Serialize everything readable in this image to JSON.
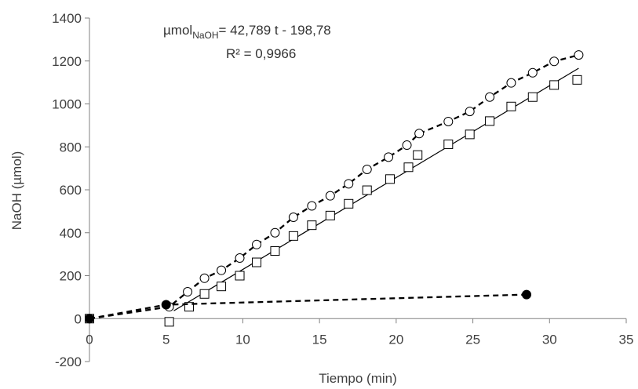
{
  "chart_data": {
    "type": "scatter",
    "xlabel": "Tiempo (min)",
    "ylabel": "NaOH (µmol)",
    "xlim": [
      0,
      35
    ],
    "ylim": [
      -200,
      1400
    ],
    "x_ticks": [
      0,
      5,
      10,
      15,
      20,
      25,
      30,
      35
    ],
    "y_ticks": [
      -200,
      0,
      200,
      400,
      600,
      800,
      1000,
      1200,
      1400
    ],
    "grid": false,
    "legend": "none",
    "annotation": {
      "equation_prefix": "µmol",
      "equation_subscript": "NaOH",
      "equation_rest": "= 42,789 t - 198,78",
      "r_squared": "R² = 0,9966"
    },
    "trendline": {
      "slope": 42.789,
      "intercept": -198.78,
      "x_range": [
        5.5,
        31.9
      ],
      "style": "solid"
    },
    "series": [
      {
        "marker": "square",
        "line": "none",
        "points": [
          [
            0,
            0
          ],
          [
            5.2,
            -15
          ],
          [
            6.5,
            55
          ],
          [
            7.5,
            115
          ],
          [
            8.6,
            150
          ],
          [
            9.8,
            200
          ],
          [
            10.9,
            262
          ],
          [
            12.1,
            315
          ],
          [
            13.3,
            385
          ],
          [
            14.5,
            435
          ],
          [
            15.7,
            480
          ],
          [
            16.9,
            535
          ],
          [
            18.1,
            598
          ],
          [
            19.6,
            650
          ],
          [
            20.8,
            705
          ],
          [
            21.4,
            762
          ],
          [
            23.4,
            812
          ],
          [
            24.8,
            858
          ],
          [
            26.1,
            920
          ],
          [
            27.5,
            988
          ],
          [
            28.9,
            1032
          ],
          [
            30.3,
            1088
          ],
          [
            31.8,
            1112
          ]
        ]
      },
      {
        "marker": "open-circle",
        "line": "dashed",
        "points": [
          [
            0,
            0
          ],
          [
            5.2,
            55
          ],
          [
            6.4,
            125
          ],
          [
            7.5,
            188
          ],
          [
            8.6,
            225
          ],
          [
            9.8,
            282
          ],
          [
            10.9,
            345
          ],
          [
            12.1,
            400
          ],
          [
            13.3,
            472
          ],
          [
            14.5,
            525
          ],
          [
            15.7,
            572
          ],
          [
            16.9,
            628
          ],
          [
            18.1,
            695
          ],
          [
            19.5,
            752
          ],
          [
            20.7,
            808
          ],
          [
            21.5,
            862
          ],
          [
            23.4,
            918
          ],
          [
            24.8,
            965
          ],
          [
            26.1,
            1032
          ],
          [
            27.5,
            1098
          ],
          [
            28.9,
            1145
          ],
          [
            30.3,
            1198
          ],
          [
            31.9,
            1228
          ]
        ]
      },
      {
        "marker": "filled-circle",
        "line": "dashed",
        "points": [
          [
            0,
            0
          ],
          [
            5,
            65
          ],
          [
            28.5,
            112
          ]
        ]
      }
    ]
  }
}
